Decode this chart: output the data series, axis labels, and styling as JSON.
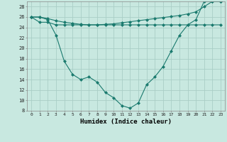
{
  "xlabel": "Humidex (Indice chaleur)",
  "ylabel": "",
  "x": [
    0,
    1,
    2,
    3,
    4,
    5,
    6,
    7,
    8,
    9,
    10,
    11,
    12,
    13,
    14,
    15,
    16,
    17,
    18,
    19,
    20,
    21,
    22,
    23
  ],
  "line1": [
    26.0,
    25.0,
    25.0,
    24.5,
    24.5,
    24.5,
    24.5,
    24.5,
    24.5,
    24.5,
    24.5,
    24.5,
    24.5,
    24.5,
    24.5,
    24.5,
    24.5,
    24.5,
    24.5,
    24.5,
    24.5,
    24.5,
    24.5,
    24.5
  ],
  "line2": [
    26.0,
    26.0,
    25.7,
    25.3,
    25.0,
    24.8,
    24.6,
    24.5,
    24.5,
    24.6,
    24.7,
    24.9,
    25.1,
    25.3,
    25.5,
    25.7,
    25.9,
    26.1,
    26.3,
    26.6,
    27.0,
    28.0,
    29.0,
    29.0
  ],
  "line3": [
    26.0,
    26.0,
    25.5,
    22.5,
    17.5,
    15.0,
    14.0,
    14.5,
    13.5,
    11.5,
    10.5,
    9.0,
    8.5,
    9.5,
    13.0,
    14.5,
    16.5,
    19.5,
    22.5,
    24.5,
    25.5,
    29.0,
    29.0,
    29.0
  ],
  "color": "#1a7a6e",
  "bg_color": "#c8e8e0",
  "grid_color": "#aacec6",
  "ylim": [
    8,
    29
  ],
  "yticks": [
    8,
    10,
    12,
    14,
    16,
    18,
    20,
    22,
    24,
    26,
    28
  ],
  "xticks": [
    0,
    1,
    2,
    3,
    4,
    5,
    6,
    7,
    8,
    9,
    10,
    11,
    12,
    13,
    14,
    15,
    16,
    17,
    18,
    19,
    20,
    21,
    22,
    23
  ],
  "marker": "D",
  "markersize": 2.0,
  "linewidth": 0.8
}
